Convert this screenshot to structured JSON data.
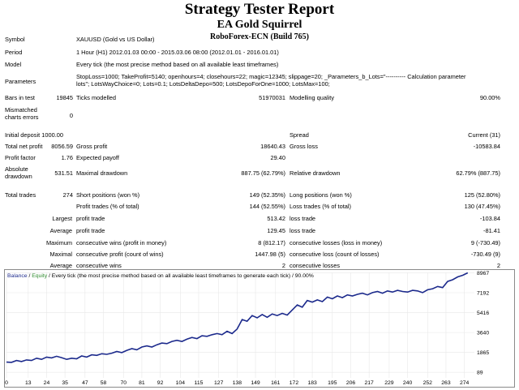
{
  "header": {
    "title": "Strategy Tester Report",
    "expert": "EA Gold Squirrel",
    "server": "RoboForex-ECN (Build 765)"
  },
  "info": {
    "symbol_label": "Symbol",
    "symbol_value": "XAUUSD (Gold vs US Dollar)",
    "period_label": "Period",
    "period_value": "1 Hour (H1) 2012.01.03 00:00 - 2015.03.06 08:00 (2012.01.01 - 2016.01.01)",
    "model_label": "Model",
    "model_value": "Every tick (the most precise method based on all available least timeframes)",
    "parameters_label": "Parameters",
    "parameters_line1": "StopLoss=1000; TakeProfit=5140; openhours=4; closehours=22; magic=12345; slippage=20; _Parameters_b_Lots=\"---------- Calculation parameter",
    "parameters_line2": "lots\"; LotsWayChoice=0; Lots=0.1; LotsDeltaDepo=500; LotsDepoForOne=1000; LotsMax=100;"
  },
  "stats": {
    "bars_in_test_label": "Bars in test",
    "bars_in_test": "19845",
    "ticks_modelled_label": "Ticks modelled",
    "ticks_modelled": "51970031",
    "modelling_quality_label": "Modelling quality",
    "modelling_quality": "90.00%",
    "mismatched_label_1": "Mismatched",
    "mismatched_label_2": "charts errors",
    "mismatched": "0",
    "initial_deposit_label": "Initial deposit",
    "initial_deposit": "1000.00",
    "spread_label": "Spread",
    "spread": "Current (31)",
    "total_net_profit_label": "Total net profit",
    "total_net_profit": "8056.59",
    "gross_profit_label": "Gross profit",
    "gross_profit": "18640.43",
    "gross_loss_label": "Gross loss",
    "gross_loss": "-10583.84",
    "profit_factor_label": "Profit factor",
    "profit_factor": "1.76",
    "expected_payoff_label": "Expected payoff",
    "expected_payoff": "29.40",
    "absolute_drawdown_label_1": "Absolute",
    "absolute_drawdown_label_2": "drawdown",
    "absolute_drawdown": "531.51",
    "maximal_drawdown_label": "Maximal drawdown",
    "maximal_drawdown": "887.75 (62.79%)",
    "relative_drawdown_label": "Relative drawdown",
    "relative_drawdown": "62.79% (887.75)",
    "total_trades_label": "Total trades",
    "total_trades": "274",
    "short_positions_label": "Short positions (won %)",
    "short_positions": "149 (52.35%)",
    "long_positions_label": "Long positions (won %)",
    "long_positions": "125 (52.80%)",
    "profit_trades_label": "Profit trades (% of total)",
    "profit_trades": "144 (52.55%)",
    "loss_trades_label": "Loss trades (% of total)",
    "loss_trades": "130 (47.45%)",
    "largest_label": "Largest",
    "largest_profit_label": "profit trade",
    "largest_profit": "513.42",
    "largest_loss_label": "loss trade",
    "largest_loss": "-103.84",
    "average_label": "Average",
    "average_profit_label": "profit trade",
    "average_profit": "129.45",
    "average_loss_label": "loss trade",
    "average_loss": "-81.41",
    "maximum_label": "Maximum",
    "max_consec_wins_label": "consecutive wins (profit in money)",
    "max_consec_wins": "8 (812.17)",
    "max_consec_losses_label": "consecutive losses (loss in money)",
    "max_consec_losses": "9 (-730.49)",
    "maximal_label": "Maximal",
    "maximal_consec_profit_label": "consecutive profit (count of wins)",
    "maximal_consec_profit": "1447.98 (5)",
    "maximal_consec_loss_label": "consecutive loss (count of losses)",
    "maximal_consec_loss": "-730.49 (9)",
    "average2_label": "Average",
    "avg_consec_wins_label": "consecutive wins",
    "avg_consec_wins": "2",
    "avg_consec_losses_label": "consecutive losses",
    "avg_consec_losses": "2"
  },
  "chart_legend": {
    "balance": "Balance",
    "sep1": " / ",
    "equity": "Equity",
    "rest": " / Every tick (the most precise method based on all available least timeframes to generate each tick) / 90.00%"
  },
  "colors": {
    "balance_line": "#1c2a8c",
    "grid": "#e8e8e8",
    "legend_balance": "#1c2a8c",
    "legend_equity": "#2e8b2e"
  },
  "chart_data": {
    "type": "line",
    "xlabel": "",
    "ylabel": "",
    "x_ticks": [
      0,
      13,
      24,
      35,
      47,
      58,
      70,
      81,
      92,
      104,
      115,
      127,
      138,
      149,
      161,
      172,
      183,
      195,
      206,
      217,
      229,
      240,
      252,
      263,
      274
    ],
    "y_ticks": [
      89,
      1865,
      3640,
      5416,
      7192,
      8967
    ],
    "xlim": [
      0,
      280
    ],
    "ylim": [
      -400,
      9000
    ],
    "grid": true,
    "series": [
      {
        "name": "Balance",
        "x": [
          0,
          3,
          6,
          9,
          12,
          15,
          18,
          21,
          24,
          27,
          30,
          33,
          36,
          39,
          42,
          45,
          48,
          51,
          54,
          57,
          60,
          63,
          66,
          69,
          72,
          75,
          78,
          81,
          84,
          87,
          90,
          93,
          96,
          99,
          102,
          105,
          108,
          111,
          114,
          117,
          120,
          123,
          126,
          129,
          132,
          135,
          138,
          141,
          144,
          147,
          150,
          153,
          156,
          159,
          162,
          165,
          168,
          171,
          174,
          177,
          180,
          183,
          186,
          189,
          192,
          195,
          198,
          201,
          204,
          207,
          210,
          213,
          216,
          219,
          222,
          225,
          228,
          231,
          234,
          237,
          240,
          243,
          246,
          249,
          252,
          255,
          258,
          261,
          264,
          267,
          270,
          273,
          276
        ],
        "y": [
          1000,
          980,
          1150,
          1050,
          1200,
          1150,
          1350,
          1250,
          1450,
          1380,
          1520,
          1400,
          1250,
          1350,
          1300,
          1550,
          1450,
          1650,
          1600,
          1750,
          1700,
          1800,
          1950,
          1850,
          2050,
          2200,
          2100,
          2350,
          2450,
          2350,
          2550,
          2700,
          2650,
          2850,
          2950,
          2850,
          3050,
          3200,
          3100,
          3350,
          3300,
          3450,
          3550,
          3450,
          3750,
          3550,
          3950,
          4800,
          4650,
          5150,
          4950,
          5250,
          5000,
          5300,
          5150,
          5350,
          5200,
          5650,
          6100,
          5900,
          6500,
          6350,
          6550,
          6400,
          6800,
          6650,
          6900,
          6750,
          7000,
          6900,
          7050,
          7150,
          7000,
          7200,
          7300,
          7150,
          7350,
          7250,
          7400,
          7300,
          7250,
          7400,
          7350,
          7200,
          7450,
          7550,
          7750,
          7650,
          8200,
          8350,
          8600,
          8750,
          8967
        ]
      }
    ]
  }
}
